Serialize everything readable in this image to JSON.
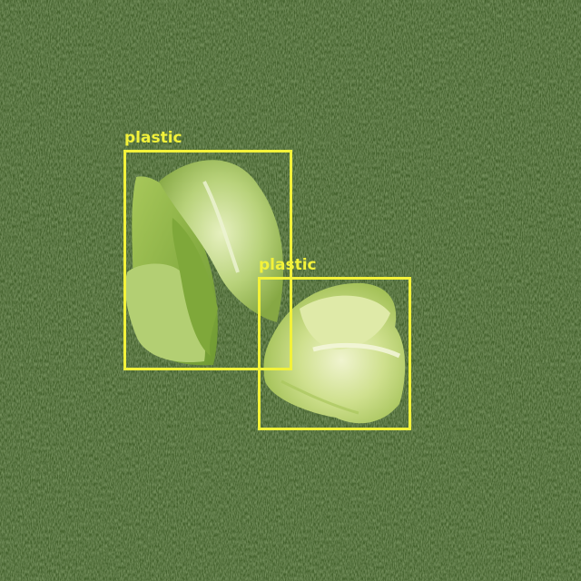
{
  "colors": {
    "box": "#f2f23a",
    "grass_dark": "#3a5526",
    "grass_mid": "#4f6e35",
    "grass_light": "#7a9a58",
    "lettuce_dark": "#8fb24a",
    "lettuce_mid": "#b9d27a",
    "lettuce_light": "#e4eeb8"
  },
  "detections": [
    {
      "label": "plastic"
    },
    {
      "label": "plastic"
    }
  ]
}
